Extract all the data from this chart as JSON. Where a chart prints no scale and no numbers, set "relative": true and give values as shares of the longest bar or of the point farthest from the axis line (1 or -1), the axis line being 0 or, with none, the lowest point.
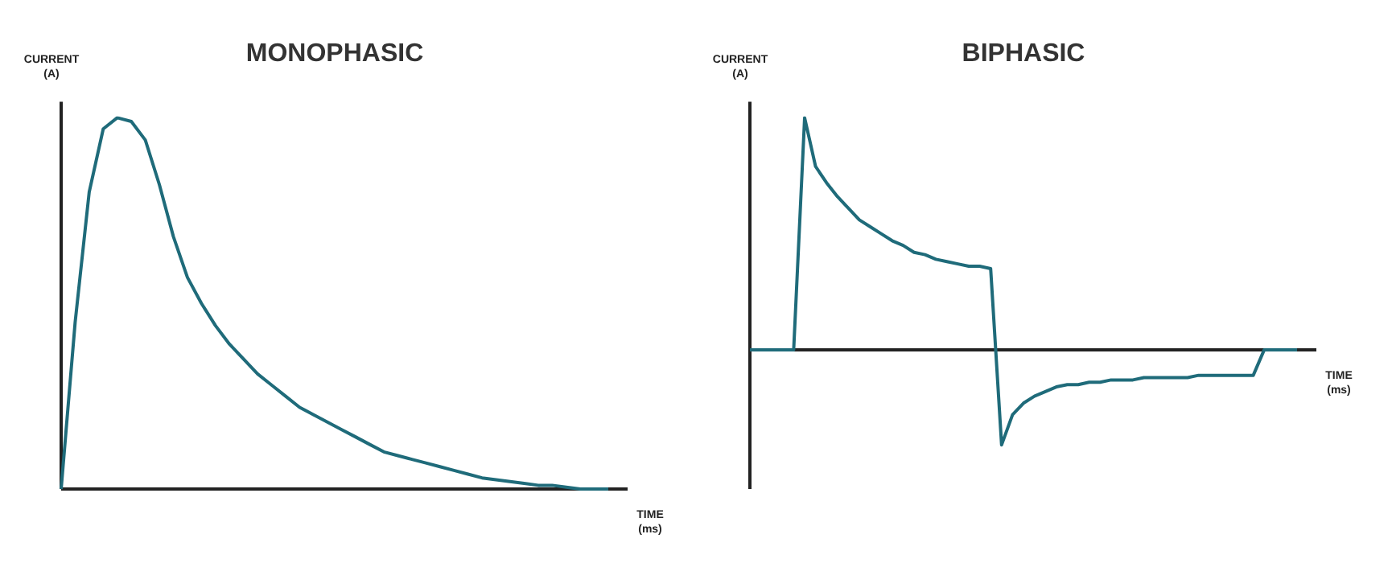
{
  "chart_data": [
    {
      "type": "line",
      "title": "MONOPHASIC",
      "xlabel": "TIME\n(ms)",
      "ylabel": "CURRENT\n(A)",
      "relative": true,
      "legend": false,
      "marker": "none",
      "line_style": "solid",
      "categories": [
        null,
        null,
        null,
        null,
        null,
        null,
        null,
        null,
        null,
        null,
        null,
        null,
        null,
        null,
        null,
        null,
        null,
        null,
        null,
        null,
        null,
        null,
        null,
        null,
        null,
        null,
        null,
        null,
        null,
        null,
        null,
        null,
        null,
        null,
        null,
        null,
        null,
        null,
        null,
        null
      ],
      "series": [
        {
          "color": "#1f6b7a",
          "values": [
            0,
            0.45,
            0.8,
            0.97,
            1,
            0.99,
            0.94,
            0.82,
            0.68,
            0.57,
            0.5,
            0.44,
            0.39,
            0.35,
            0.31,
            0.28,
            0.25,
            0.22,
            0.2,
            0.18,
            0.16,
            0.14,
            0.12,
            0.1,
            0.09,
            0.08,
            0.07,
            0.06,
            0.05,
            0.04,
            0.03,
            0.025,
            0.02,
            0.015,
            0.01,
            0.01,
            0.005,
            0,
            0,
            0
          ]
        }
      ]
    },
    {
      "type": "line",
      "title": "BIPHASIC",
      "xlabel": "TIME\n(ms)",
      "ylabel": "CURRENT\n(A)",
      "relative": true,
      "legend": false,
      "marker": "none",
      "line_style": "solid",
      "categories": [
        null,
        null,
        null,
        null,
        null,
        null,
        null,
        null,
        null,
        null,
        null,
        null,
        null,
        null,
        null,
        null,
        null,
        null,
        null,
        null,
        null,
        null,
        null,
        null,
        null,
        null,
        null,
        null,
        null,
        null,
        null,
        null,
        null,
        null,
        null,
        null,
        null,
        null,
        null,
        null,
        null,
        null,
        null,
        null,
        null,
        null,
        null,
        null,
        null,
        null,
        null
      ],
      "series": [
        {
          "color": "#1f6b7a",
          "values": [
            0,
            0,
            0,
            0,
            0,
            1,
            0.79,
            0.72,
            0.66,
            0.61,
            0.56,
            0.53,
            0.5,
            0.47,
            0.45,
            0.42,
            0.41,
            0.39,
            0.38,
            0.37,
            0.36,
            0.36,
            0.35,
            -0.41,
            -0.28,
            -0.23,
            -0.2,
            -0.18,
            -0.16,
            -0.15,
            -0.15,
            -0.14,
            -0.14,
            -0.13,
            -0.13,
            -0.13,
            -0.12,
            -0.12,
            -0.12,
            -0.12,
            -0.12,
            -0.11,
            -0.11,
            -0.11,
            -0.11,
            -0.11,
            -0.11,
            0,
            0,
            0,
            0
          ]
        }
      ]
    }
  ]
}
